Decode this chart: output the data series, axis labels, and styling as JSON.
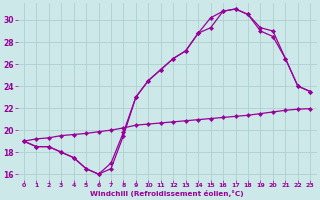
{
  "xlabel": "Windchill (Refroidissement éolien,°C)",
  "bg_color": "#cce8e8",
  "grid_color": "#aacccc",
  "line_color": "#990099",
  "ylim": [
    15.5,
    31.5
  ],
  "xlim": [
    -0.5,
    23.5
  ],
  "yticks": [
    16,
    18,
    20,
    22,
    24,
    26,
    28,
    30
  ],
  "xticks": [
    0,
    1,
    2,
    3,
    4,
    5,
    6,
    7,
    8,
    9,
    10,
    11,
    12,
    13,
    14,
    15,
    16,
    17,
    18,
    19,
    20,
    21,
    22,
    23
  ],
  "line1_x": [
    0,
    1,
    2,
    3,
    4,
    5,
    6,
    7,
    8,
    9,
    10,
    11,
    12,
    13,
    14,
    15,
    16,
    17,
    18,
    19,
    20,
    21,
    22,
    23
  ],
  "line1_y": [
    19.0,
    18.5,
    18.5,
    18.0,
    17.5,
    16.5,
    16.0,
    16.5,
    19.5,
    23.0,
    24.5,
    25.5,
    26.5,
    27.2,
    28.8,
    30.2,
    30.8,
    31.0,
    30.5,
    29.0,
    28.5,
    26.5,
    24.0,
    23.5
  ],
  "line2_x": [
    0,
    1,
    2,
    3,
    4,
    5,
    6,
    7,
    8,
    9,
    10,
    11,
    12,
    13,
    14,
    15,
    16,
    17,
    18,
    19,
    20,
    21,
    22,
    23
  ],
  "line2_y": [
    19.0,
    18.5,
    18.5,
    18.0,
    17.5,
    16.5,
    16.0,
    17.0,
    19.8,
    23.0,
    24.5,
    25.5,
    26.5,
    27.2,
    28.8,
    29.3,
    30.8,
    31.0,
    30.5,
    29.3,
    29.0,
    26.5,
    24.0,
    23.5
  ],
  "line3_x": [
    0,
    1,
    2,
    3,
    4,
    5,
    6,
    7,
    8,
    9,
    10,
    11,
    12,
    13,
    14,
    15,
    16,
    17,
    18,
    19,
    20,
    21,
    22,
    23
  ],
  "line3_y": [
    19.0,
    19.2,
    19.3,
    19.5,
    19.6,
    19.7,
    19.85,
    20.0,
    20.2,
    20.45,
    20.55,
    20.65,
    20.75,
    20.85,
    20.95,
    21.05,
    21.15,
    21.25,
    21.35,
    21.5,
    21.65,
    21.8,
    21.9,
    21.95
  ]
}
